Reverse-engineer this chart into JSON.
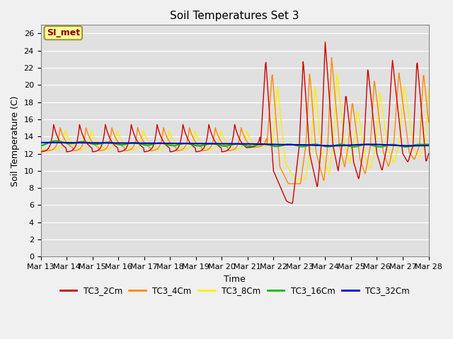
{
  "title": "Soil Temperatures Set 3",
  "xlabel": "Time",
  "ylabel": "Soil Temperature (C)",
  "ylim": [
    0,
    27
  ],
  "yticks": [
    0,
    2,
    4,
    6,
    8,
    10,
    12,
    14,
    16,
    18,
    20,
    22,
    24,
    26
  ],
  "bg_color": "#e0e0e0",
  "fig_color": "#f0f0f0",
  "annotation_text": "SI_met",
  "annotation_bg": "#ffff99",
  "annotation_border": "#999933",
  "series_colors": {
    "TC3_2Cm": "#cc0000",
    "TC3_4Cm": "#ff8800",
    "TC3_8Cm": "#ffee00",
    "TC3_16Cm": "#00bb00",
    "TC3_32Cm": "#0000cc"
  },
  "x_tick_labels": [
    "Mar 13",
    "Mar 14",
    "Mar 15",
    "Mar 16",
    "Mar 17",
    "Mar 18",
    "Mar 19",
    "Mar 20",
    "Mar 21",
    "Mar 22",
    "Mar 23",
    "Mar 24",
    "Mar 25",
    "Mar 26",
    "Mar 27",
    "Mar 28"
  ],
  "n_points": 721,
  "start_day": 13,
  "end_day": 28
}
